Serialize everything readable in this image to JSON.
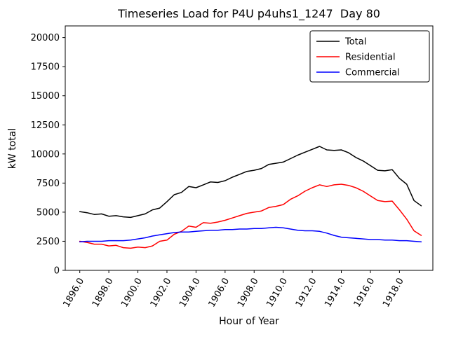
{
  "figure": {
    "background": "#ffffff",
    "axes_edge_color": "#000000"
  },
  "chart_data": {
    "type": "line",
    "title": "Timeseries Load for P4U p4uhs1_1247  Day 80",
    "xlabel": "Hour of Year",
    "ylabel": "kW total",
    "grid": false,
    "xlim": [
      1895.0,
      1920.3
    ],
    "ylim": [
      0,
      21000
    ],
    "xticks": [
      1896,
      1898,
      1900,
      1902,
      1904,
      1906,
      1908,
      1910,
      1912,
      1914,
      1916,
      1918
    ],
    "xtick_labels": [
      "1896.0",
      "1898.0",
      "1900.0",
      "1902.0",
      "1904.0",
      "1906.0",
      "1908.0",
      "1910.0",
      "1912.0",
      "1914.0",
      "1916.0",
      "1918.0"
    ],
    "yticks": [
      0,
      2500,
      5000,
      7500,
      10000,
      12500,
      15000,
      17500,
      20000
    ],
    "ytick_labels": [
      "0",
      "2500",
      "5000",
      "7500",
      "10000",
      "12500",
      "15000",
      "17500",
      "20000"
    ],
    "legend": {
      "position": "upper-right",
      "entries": [
        {
          "label": "Total",
          "color": "#000000"
        },
        {
          "label": "Residential",
          "color": "#ff0000"
        },
        {
          "label": "Commercial",
          "color": "#0000ff"
        }
      ]
    },
    "x": [
      1896.0,
      1896.5,
      1897.0,
      1897.5,
      1898.0,
      1898.5,
      1899.0,
      1899.5,
      1900.0,
      1900.5,
      1901.0,
      1901.5,
      1902.0,
      1902.5,
      1903.0,
      1903.5,
      1904.0,
      1904.5,
      1905.0,
      1905.5,
      1906.0,
      1906.5,
      1907.0,
      1907.5,
      1908.0,
      1908.5,
      1909.0,
      1909.5,
      1910.0,
      1910.5,
      1911.0,
      1911.5,
      1912.0,
      1912.5,
      1913.0,
      1913.5,
      1914.0,
      1914.5,
      1915.0,
      1915.5,
      1916.0,
      1916.5,
      1917.0,
      1917.5,
      1918.0,
      1918.5,
      1919.0,
      1919.5
    ],
    "series": [
      {
        "name": "Total",
        "color": "#000000",
        "values": [
          5050,
          4950,
          4800,
          4850,
          4650,
          4700,
          4600,
          4550,
          4700,
          4850,
          5200,
          5350,
          5900,
          6500,
          6700,
          7200,
          7100,
          7350,
          7600,
          7550,
          7700,
          8000,
          8250,
          8500,
          8600,
          8750,
          9100,
          9200,
          9300,
          9600,
          9900,
          10150,
          10400,
          10650,
          10350,
          10300,
          10350,
          10100,
          9700,
          9400,
          9000,
          8600,
          8550,
          8650,
          7900,
          7400,
          6000,
          5550
        ]
      },
      {
        "name": "Residential",
        "color": "#ff0000",
        "values": [
          2500,
          2400,
          2250,
          2250,
          2100,
          2150,
          1950,
          1900,
          2000,
          1950,
          2100,
          2500,
          2600,
          3100,
          3350,
          3800,
          3700,
          4100,
          4050,
          4150,
          4300,
          4500,
          4700,
          4900,
          5000,
          5100,
          5400,
          5500,
          5650,
          6100,
          6400,
          6800,
          7100,
          7350,
          7200,
          7350,
          7400,
          7300,
          7100,
          6800,
          6400,
          6000,
          5900,
          5950,
          5200,
          4400,
          3400,
          3000
        ]
      },
      {
        "name": "Commercial",
        "color": "#0000ff",
        "values": [
          2450,
          2500,
          2500,
          2500,
          2550,
          2550,
          2550,
          2600,
          2700,
          2800,
          2950,
          3050,
          3150,
          3250,
          3300,
          3300,
          3350,
          3400,
          3450,
          3450,
          3500,
          3500,
          3550,
          3550,
          3600,
          3600,
          3650,
          3700,
          3650,
          3550,
          3450,
          3400,
          3400,
          3350,
          3200,
          3000,
          2850,
          2800,
          2750,
          2700,
          2650,
          2650,
          2600,
          2600,
          2550,
          2550,
          2500,
          2450
        ]
      }
    ]
  }
}
